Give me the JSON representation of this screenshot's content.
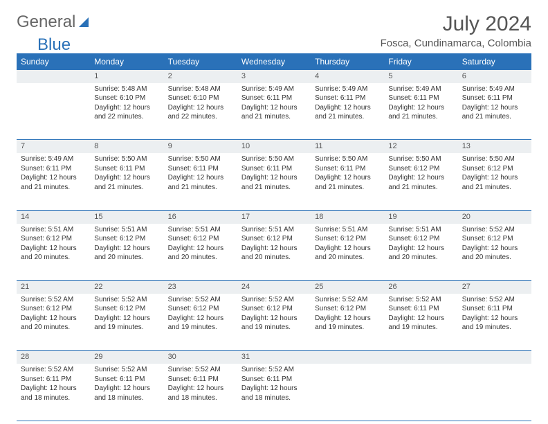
{
  "logo": {
    "text1": "General",
    "text2": "Blue"
  },
  "title": "July 2024",
  "location": "Fosca, Cundinamarca, Colombia",
  "colors": {
    "header_bg": "#2a71b8",
    "header_text": "#ffffff",
    "daynum_bg": "#eceff1",
    "border": "#2a71b8",
    "body_text": "#333333",
    "title_text": "#555555"
  },
  "dayNames": [
    "Sunday",
    "Monday",
    "Tuesday",
    "Wednesday",
    "Thursday",
    "Friday",
    "Saturday"
  ],
  "weeks": [
    [
      null,
      {
        "n": "1",
        "sr": "Sunrise: 5:48 AM",
        "ss": "Sunset: 6:10 PM",
        "dl": "Daylight: 12 hours and 22 minutes."
      },
      {
        "n": "2",
        "sr": "Sunrise: 5:48 AM",
        "ss": "Sunset: 6:10 PM",
        "dl": "Daylight: 12 hours and 22 minutes."
      },
      {
        "n": "3",
        "sr": "Sunrise: 5:49 AM",
        "ss": "Sunset: 6:11 PM",
        "dl": "Daylight: 12 hours and 21 minutes."
      },
      {
        "n": "4",
        "sr": "Sunrise: 5:49 AM",
        "ss": "Sunset: 6:11 PM",
        "dl": "Daylight: 12 hours and 21 minutes."
      },
      {
        "n": "5",
        "sr": "Sunrise: 5:49 AM",
        "ss": "Sunset: 6:11 PM",
        "dl": "Daylight: 12 hours and 21 minutes."
      },
      {
        "n": "6",
        "sr": "Sunrise: 5:49 AM",
        "ss": "Sunset: 6:11 PM",
        "dl": "Daylight: 12 hours and 21 minutes."
      }
    ],
    [
      {
        "n": "7",
        "sr": "Sunrise: 5:49 AM",
        "ss": "Sunset: 6:11 PM",
        "dl": "Daylight: 12 hours and 21 minutes."
      },
      {
        "n": "8",
        "sr": "Sunrise: 5:50 AM",
        "ss": "Sunset: 6:11 PM",
        "dl": "Daylight: 12 hours and 21 minutes."
      },
      {
        "n": "9",
        "sr": "Sunrise: 5:50 AM",
        "ss": "Sunset: 6:11 PM",
        "dl": "Daylight: 12 hours and 21 minutes."
      },
      {
        "n": "10",
        "sr": "Sunrise: 5:50 AM",
        "ss": "Sunset: 6:11 PM",
        "dl": "Daylight: 12 hours and 21 minutes."
      },
      {
        "n": "11",
        "sr": "Sunrise: 5:50 AM",
        "ss": "Sunset: 6:11 PM",
        "dl": "Daylight: 12 hours and 21 minutes."
      },
      {
        "n": "12",
        "sr": "Sunrise: 5:50 AM",
        "ss": "Sunset: 6:12 PM",
        "dl": "Daylight: 12 hours and 21 minutes."
      },
      {
        "n": "13",
        "sr": "Sunrise: 5:50 AM",
        "ss": "Sunset: 6:12 PM",
        "dl": "Daylight: 12 hours and 21 minutes."
      }
    ],
    [
      {
        "n": "14",
        "sr": "Sunrise: 5:51 AM",
        "ss": "Sunset: 6:12 PM",
        "dl": "Daylight: 12 hours and 20 minutes."
      },
      {
        "n": "15",
        "sr": "Sunrise: 5:51 AM",
        "ss": "Sunset: 6:12 PM",
        "dl": "Daylight: 12 hours and 20 minutes."
      },
      {
        "n": "16",
        "sr": "Sunrise: 5:51 AM",
        "ss": "Sunset: 6:12 PM",
        "dl": "Daylight: 12 hours and 20 minutes."
      },
      {
        "n": "17",
        "sr": "Sunrise: 5:51 AM",
        "ss": "Sunset: 6:12 PM",
        "dl": "Daylight: 12 hours and 20 minutes."
      },
      {
        "n": "18",
        "sr": "Sunrise: 5:51 AM",
        "ss": "Sunset: 6:12 PM",
        "dl": "Daylight: 12 hours and 20 minutes."
      },
      {
        "n": "19",
        "sr": "Sunrise: 5:51 AM",
        "ss": "Sunset: 6:12 PM",
        "dl": "Daylight: 12 hours and 20 minutes."
      },
      {
        "n": "20",
        "sr": "Sunrise: 5:52 AM",
        "ss": "Sunset: 6:12 PM",
        "dl": "Daylight: 12 hours and 20 minutes."
      }
    ],
    [
      {
        "n": "21",
        "sr": "Sunrise: 5:52 AM",
        "ss": "Sunset: 6:12 PM",
        "dl": "Daylight: 12 hours and 20 minutes."
      },
      {
        "n": "22",
        "sr": "Sunrise: 5:52 AM",
        "ss": "Sunset: 6:12 PM",
        "dl": "Daylight: 12 hours and 19 minutes."
      },
      {
        "n": "23",
        "sr": "Sunrise: 5:52 AM",
        "ss": "Sunset: 6:12 PM",
        "dl": "Daylight: 12 hours and 19 minutes."
      },
      {
        "n": "24",
        "sr": "Sunrise: 5:52 AM",
        "ss": "Sunset: 6:12 PM",
        "dl": "Daylight: 12 hours and 19 minutes."
      },
      {
        "n": "25",
        "sr": "Sunrise: 5:52 AM",
        "ss": "Sunset: 6:12 PM",
        "dl": "Daylight: 12 hours and 19 minutes."
      },
      {
        "n": "26",
        "sr": "Sunrise: 5:52 AM",
        "ss": "Sunset: 6:11 PM",
        "dl": "Daylight: 12 hours and 19 minutes."
      },
      {
        "n": "27",
        "sr": "Sunrise: 5:52 AM",
        "ss": "Sunset: 6:11 PM",
        "dl": "Daylight: 12 hours and 19 minutes."
      }
    ],
    [
      {
        "n": "28",
        "sr": "Sunrise: 5:52 AM",
        "ss": "Sunset: 6:11 PM",
        "dl": "Daylight: 12 hours and 18 minutes."
      },
      {
        "n": "29",
        "sr": "Sunrise: 5:52 AM",
        "ss": "Sunset: 6:11 PM",
        "dl": "Daylight: 12 hours and 18 minutes."
      },
      {
        "n": "30",
        "sr": "Sunrise: 5:52 AM",
        "ss": "Sunset: 6:11 PM",
        "dl": "Daylight: 12 hours and 18 minutes."
      },
      {
        "n": "31",
        "sr": "Sunrise: 5:52 AM",
        "ss": "Sunset: 6:11 PM",
        "dl": "Daylight: 12 hours and 18 minutes."
      },
      null,
      null,
      null
    ]
  ]
}
